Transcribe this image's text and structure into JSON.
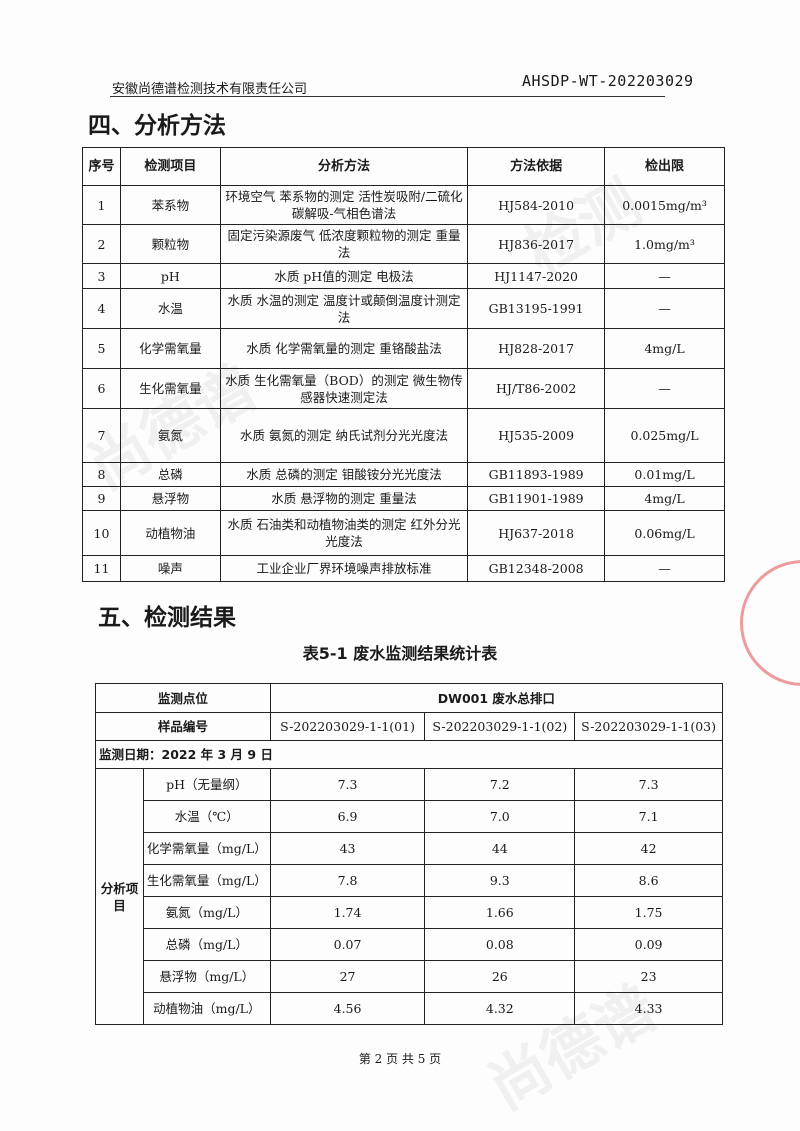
{
  "header": {
    "company": "安徽尚德谱检测技术有限责任公司",
    "report_no": "AHSDP-WT-202203029"
  },
  "section4": {
    "title": "四、分析方法",
    "columns": [
      "序号",
      "检测项目",
      "分析方法",
      "方法依据",
      "检出限"
    ],
    "rows": [
      [
        "1",
        "苯系物",
        "环境空气 苯系物的测定 活性炭吸附/二硫化碳解吸-气相色谱法",
        "HJ584-2010",
        "0.0015mg/m³"
      ],
      [
        "2",
        "颗粒物",
        "固定污染源废气 低浓度颗粒物的测定 重量法",
        "HJ836-2017",
        "1.0mg/m³"
      ],
      [
        "3",
        "pH",
        "水质 pH值的测定 电极法",
        "HJ1147-2020",
        "—"
      ],
      [
        "4",
        "水温",
        "水质 水温的测定 温度计或颠倒温度计测定法",
        "GB13195-1991",
        "—"
      ],
      [
        "5",
        "化学需氧量",
        "水质 化学需氧量的测定 重铬酸盐法",
        "HJ828-2017",
        "4mg/L"
      ],
      [
        "6",
        "生化需氧量",
        "水质 生化需氧量（BOD）的测定 微生物传感器快速测定法",
        "HJ/T86-2002",
        "—"
      ],
      [
        "7",
        "氨氮",
        "水质 氨氮的测定 纳氏试剂分光光度法",
        "HJ535-2009",
        "0.025mg/L"
      ],
      [
        "8",
        "总磷",
        "水质 总磷的测定 钼酸铵分光光度法",
        "GB11893-1989",
        "0.01mg/L"
      ],
      [
        "9",
        "悬浮物",
        "水质 悬浮物的测定 重量法",
        "GB11901-1989",
        "4mg/L"
      ],
      [
        "10",
        "动植物油",
        "水质 石油类和动植物油类的测定 红外分光光度法",
        "HJ637-2018",
        "0.06mg/L"
      ],
      [
        "11",
        "噪声",
        "工业企业厂界环境噪声排放标准",
        "GB12348-2008",
        "—"
      ]
    ]
  },
  "section5": {
    "title": "五、检测结果",
    "table_caption": "表5-1 废水监测结果统计表",
    "point_label": "监测点位",
    "point_value": "DW001 废水总排口",
    "sample_label": "样品编号",
    "samples": [
      "S-202203029-1-1(01)",
      "S-202203029-1-1(02)",
      "S-202203029-1-1(03)"
    ],
    "date": "监测日期：2022 年 3 月 9 日",
    "group_label": "分析项目",
    "rows": [
      {
        "item": "pH（无量纲）",
        "values": [
          "7.3",
          "7.2",
          "7.3"
        ]
      },
      {
        "item": "水温（℃）",
        "values": [
          "6.9",
          "7.0",
          "7.1"
        ]
      },
      {
        "item": "化学需氧量（mg/L）",
        "values": [
          "43",
          "44",
          "42"
        ]
      },
      {
        "item": "生化需氧量（mg/L）",
        "values": [
          "7.8",
          "9.3",
          "8.6"
        ]
      },
      {
        "item": "氨氮（mg/L）",
        "values": [
          "1.74",
          "1.66",
          "1.75"
        ]
      },
      {
        "item": "总磷（mg/L）",
        "values": [
          "0.07",
          "0.08",
          "0.09"
        ]
      },
      {
        "item": "悬浮物（mg/L）",
        "values": [
          "27",
          "26",
          "23"
        ]
      },
      {
        "item": "动植物油（mg/L）",
        "values": [
          "4.56",
          "4.32",
          "4.33"
        ]
      }
    ]
  },
  "footer": "第 2 页 共 5 页",
  "watermark": "尚德谱 检测 SDP DETECTION"
}
